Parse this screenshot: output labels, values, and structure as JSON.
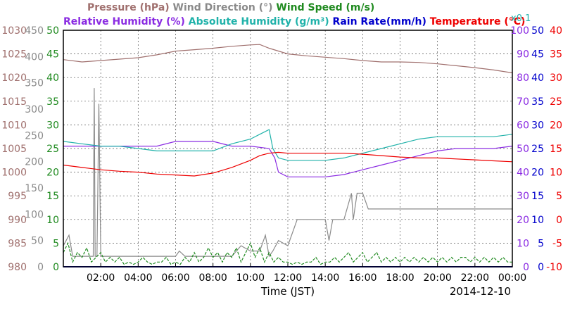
{
  "chart_data": {
    "type": "line",
    "title_line1": [
      {
        "text": "Pressure (hPa)",
        "color": "#a0706e"
      },
      {
        "text": "Wind Direction (°)",
        "color": "#8a8a8a"
      },
      {
        "text": "Wind Speed (m/s)",
        "color": "#1f8a1f"
      }
    ],
    "title_line2": [
      {
        "text": "Relative Humidity (%)",
        "color": "#8a2be2"
      },
      {
        "text": "Absolute Humidity (g/m³)",
        "color": "#20b2aa"
      },
      {
        "text": "Rain Rate(mm/h)",
        "color": "#0000cc"
      },
      {
        "text": "Temperature (°C)",
        "color": "#ee0000"
      }
    ],
    "abs_humidity_scale_note": "x0.1",
    "xlabel": "Time (JST)",
    "date_label": "2014-12-10",
    "x_range_hours": [
      0,
      24
    ],
    "x_ticks": [
      "02:00",
      "04:00",
      "06:00",
      "08:00",
      "10:00",
      "12:00",
      "14:00",
      "16:00",
      "18:00",
      "20:00",
      "22:00",
      "00:00"
    ],
    "grid": true,
    "axes": {
      "pressure": {
        "ticks": [
          980,
          985,
          990,
          995,
          1000,
          1005,
          1010,
          1015,
          1020,
          1025,
          1030
        ],
        "range": [
          980,
          1030
        ],
        "color": "#a0706e"
      },
      "wind_direction": {
        "ticks": [
          0,
          50,
          100,
          150,
          200,
          250,
          300,
          350,
          400,
          450
        ],
        "range": [
          0,
          450
        ],
        "color": "#8a8a8a"
      },
      "wind_speed": {
        "ticks": [
          0,
          5,
          10,
          15,
          20,
          25,
          30,
          35,
          40,
          45,
          50
        ],
        "range": [
          0,
          50
        ],
        "color": "#1f8a1f"
      },
      "relative_humidity": {
        "ticks": [
          0,
          10,
          20,
          30,
          40,
          50,
          60,
          70,
          80,
          90,
          100
        ],
        "range": [
          0,
          100
        ],
        "color": "#8a2be2"
      },
      "rain_rate": {
        "ticks": [
          0,
          5,
          10,
          15,
          20,
          25,
          30,
          35,
          40,
          45,
          50
        ],
        "range": [
          0,
          50
        ],
        "color": "#0000cc"
      },
      "temperature": {
        "ticks": [
          -10,
          -5,
          0,
          5,
          10,
          15,
          20,
          25,
          30,
          35,
          40
        ],
        "range": [
          -10,
          40
        ],
        "color": "#ee0000"
      }
    },
    "series": [
      {
        "name": "Pressure (hPa)",
        "axis": "pressure",
        "color": "#a0706e",
        "x": [
          0,
          1,
          2,
          3,
          4,
          5,
          6,
          7,
          8,
          9,
          10,
          10.5,
          11,
          12,
          13,
          14,
          15,
          16,
          17,
          18,
          19,
          20,
          21,
          22,
          23,
          24
        ],
        "y": [
          1023.8,
          1023.3,
          1023.6,
          1023.9,
          1024.2,
          1024.8,
          1025.6,
          1025.9,
          1026.2,
          1026.6,
          1026.9,
          1027.0,
          1026.2,
          1025.0,
          1024.6,
          1024.3,
          1024.0,
          1023.6,
          1023.3,
          1023.3,
          1023.2,
          1022.9,
          1022.5,
          1022.1,
          1021.6,
          1021.0
        ]
      },
      {
        "name": "Wind Direction (°)",
        "axis": "wind_direction",
        "color": "#8a8a8a",
        "x": [
          0,
          0.3,
          0.5,
          1.6,
          1.65,
          1.7,
          1.8,
          1.9,
          2.0,
          2.1,
          2.2,
          2.3,
          3,
          4,
          5,
          5.5,
          6,
          6.2,
          6.5,
          7,
          8,
          9,
          9.5,
          10,
          10.5,
          10.8,
          11,
          11.2,
          11.5,
          12,
          12.5,
          13,
          14,
          14.2,
          14.4,
          14.6,
          15,
          15.4,
          15.5,
          15.7,
          16,
          16.3,
          16.5,
          17,
          18,
          19,
          20,
          21,
          22,
          23,
          24
        ],
        "y": [
          40,
          60,
          20,
          20,
          340,
          20,
          20,
          310,
          20,
          20,
          20,
          20,
          20,
          20,
          20,
          20,
          20,
          30,
          20,
          20,
          20,
          20,
          40,
          30,
          30,
          60,
          20,
          30,
          50,
          40,
          90,
          90,
          90,
          50,
          90,
          90,
          90,
          140,
          90,
          140,
          140,
          110,
          110,
          110,
          110,
          110,
          110,
          110,
          110,
          110,
          110
        ]
      },
      {
        "name": "Wind Speed (m/s)",
        "axis": "wind_speed",
        "color": "#1f8a1f",
        "x": [
          0,
          0.25,
          0.5,
          0.75,
          1,
          1.25,
          1.5,
          1.75,
          2,
          2.25,
          2.5,
          2.75,
          3,
          3.25,
          3.5,
          3.75,
          4,
          4.25,
          4.5,
          4.75,
          5,
          5.25,
          5.5,
          5.75,
          6,
          6.25,
          6.5,
          6.75,
          7,
          7.25,
          7.5,
          7.75,
          8,
          8.25,
          8.5,
          8.75,
          9,
          9.25,
          9.5,
          9.75,
          10,
          10.25,
          10.5,
          10.75,
          11,
          11.25,
          11.5,
          11.75,
          12,
          12.25,
          12.5,
          12.75,
          13,
          13.25,
          13.5,
          13.75,
          14,
          14.25,
          14.5,
          14.75,
          15,
          15.25,
          15.5,
          15.75,
          16,
          16.25,
          16.5,
          16.75,
          17,
          17.25,
          17.5,
          17.75,
          18,
          18.25,
          18.5,
          18.75,
          19,
          19.25,
          19.5,
          19.75,
          20,
          20.25,
          20.5,
          20.75,
          21,
          21.25,
          21.5,
          21.75,
          22,
          22.25,
          22.5,
          22.75,
          23,
          23.25,
          23.5,
          23.75,
          24
        ],
        "y": [
          3,
          5,
          1,
          3,
          2,
          4,
          1,
          2,
          3,
          1,
          2,
          1,
          2,
          0.5,
          1,
          0.5,
          1,
          2,
          1,
          0.5,
          1,
          1,
          2,
          0.5,
          1,
          0.5,
          2,
          1,
          3,
          1,
          2,
          4,
          2,
          3,
          1,
          3,
          2,
          4,
          1,
          3,
          5,
          2,
          4,
          1,
          3,
          1,
          2,
          1,
          1,
          0.5,
          1,
          0.5,
          1,
          1,
          2,
          0.5,
          1,
          1,
          2,
          1,
          2,
          3,
          1,
          2,
          3,
          1,
          2,
          3,
          1,
          2,
          1,
          2,
          1,
          2,
          1,
          2,
          1,
          2,
          1,
          2,
          1,
          2,
          1,
          2,
          1,
          2,
          2,
          1,
          2,
          1,
          2,
          1,
          2,
          1,
          2,
          1,
          1
        ]
      },
      {
        "name": "Relative Humidity (%)",
        "axis": "relative_humidity",
        "color": "#8a2be2",
        "x": [
          0,
          1,
          2,
          3,
          4,
          5,
          6,
          7,
          8,
          9,
          10,
          11,
          11.3,
          11.5,
          12,
          13,
          14,
          15,
          16,
          17,
          18,
          19,
          20,
          21,
          22,
          23,
          24
        ],
        "y": [
          51,
          51,
          51,
          51,
          51,
          51,
          53,
          53,
          53,
          51,
          51,
          50,
          46,
          40,
          38,
          38,
          38,
          39,
          41,
          43,
          45,
          47,
          49,
          50,
          50,
          50,
          51
        ]
      },
      {
        "name": "Absolute Humidity (g/m³)",
        "axis": "relative_humidity",
        "color": "#20b2aa",
        "x": [
          0,
          1,
          2,
          3,
          4,
          5,
          6,
          7,
          8,
          9,
          10,
          10.5,
          11,
          11.2,
          11.5,
          12,
          13,
          14,
          15,
          16,
          17,
          18,
          19,
          20,
          21,
          22,
          23,
          24
        ],
        "y": [
          53,
          52,
          51,
          51,
          50,
          49,
          49,
          49,
          49,
          52,
          54,
          56,
          58,
          50,
          46,
          45,
          45,
          45,
          46,
          48,
          50,
          52,
          54,
          55,
          55,
          55,
          55,
          56
        ]
      },
      {
        "name": "Rain Rate(mm/h)",
        "axis": "rain_rate",
        "color": "#0000cc",
        "x": [
          0,
          24
        ],
        "y": [
          0,
          0
        ]
      },
      {
        "name": "Temperature (°C)",
        "axis": "temperature",
        "color": "#ee0000",
        "x": [
          0,
          1,
          2,
          3,
          4,
          5,
          6,
          7,
          8,
          9,
          10,
          10.5,
          11,
          11.5,
          12,
          13,
          14,
          15,
          16,
          17,
          18,
          19,
          20,
          21,
          22,
          23,
          24
        ],
        "y": [
          11.5,
          11,
          10.5,
          10.2,
          10,
          9.6,
          9.4,
          9.2,
          9.8,
          11,
          12.5,
          13.5,
          14,
          14.2,
          14,
          14,
          14,
          14,
          13.8,
          13.5,
          13.2,
          13,
          13,
          12.8,
          12.6,
          12.4,
          12.2
        ]
      }
    ]
  }
}
